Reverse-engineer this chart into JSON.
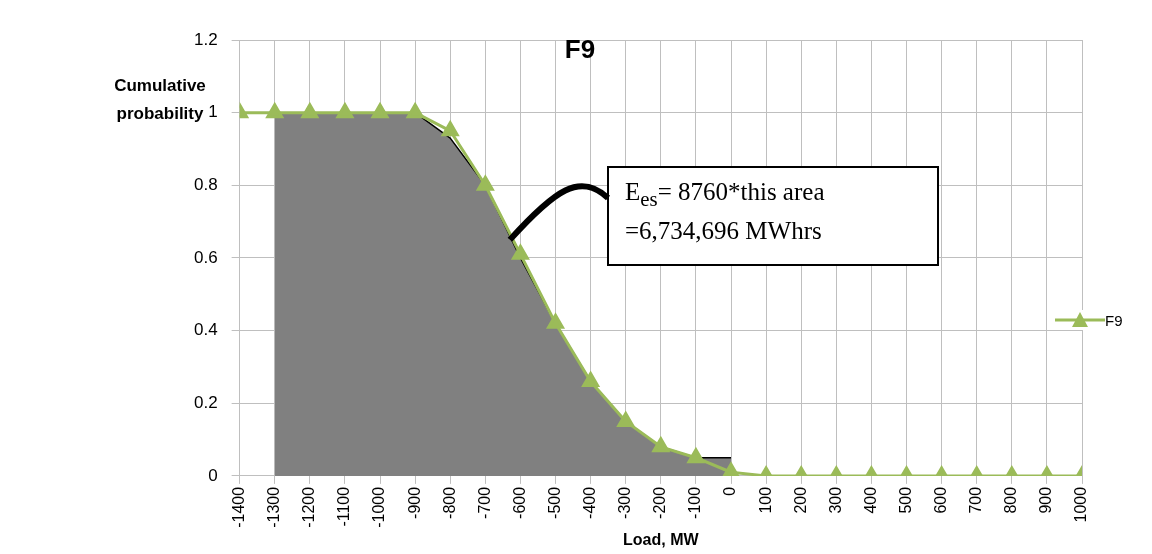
{
  "chart_data": {
    "type": "line",
    "title": "F9",
    "xlabel": "Load, MW",
    "ylabel": "Cumulative probability",
    "xlim": [
      -1400,
      1000
    ],
    "xticks": [
      -1400,
      -1300,
      -1200,
      -1100,
      -1000,
      -900,
      -800,
      -700,
      -600,
      -500,
      -400,
      -300,
      -200,
      -100,
      0,
      100,
      200,
      300,
      400,
      500,
      600,
      700,
      800,
      900,
      1000
    ],
    "ylim": [
      0,
      1.2
    ],
    "yticks": [
      0,
      0.2,
      0.4,
      0.6,
      0.8,
      1,
      1.2
    ],
    "grid": true,
    "legend": "right",
    "series": [
      {
        "type": "area",
        "color": "#808080",
        "x": [
          -1300,
          -900,
          -800,
          -700,
          -600,
          -500,
          -400,
          -300,
          -200,
          -100,
          0
        ],
        "values": [
          1,
          1,
          0.93,
          0.8,
          0.6,
          0.42,
          0.26,
          0.15,
          0.08,
          0.05,
          0.05
        ]
      },
      {
        "name": "F9",
        "marker": "triangle",
        "color": "#9bbb59",
        "x": [
          -1400,
          -1300,
          -1200,
          -1100,
          -1000,
          -900,
          -800,
          -700,
          -600,
          -500,
          -400,
          -300,
          -200,
          -100,
          0,
          100,
          200,
          300,
          400,
          500,
          600,
          700,
          800,
          900,
          1000
        ],
        "values": [
          1,
          1,
          1,
          1,
          1,
          1,
          0.95,
          0.8,
          0.61,
          0.42,
          0.26,
          0.15,
          0.08,
          0.05,
          0.01,
          0,
          0,
          0,
          0,
          0,
          0,
          0,
          0,
          0,
          0
        ]
      }
    ],
    "annotations": [
      {
        "text": "E$_{es}$= 8760*this area =6,734,696 MWhrs",
        "x": -630,
        "y": 0.65
      }
    ]
  }
}
